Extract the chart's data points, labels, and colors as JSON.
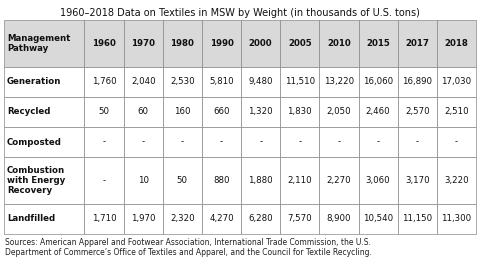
{
  "title": "1960–2018 Data on Textiles in MSW by Weight (in thousands of U.S. tons)",
  "columns": [
    "Management\nPathway",
    "1960",
    "1970",
    "1980",
    "1990",
    "2000",
    "2005",
    "2010",
    "2015",
    "2017",
    "2018"
  ],
  "rows": [
    [
      "Generation",
      "1,760",
      "2,040",
      "2,530",
      "5,810",
      "9,480",
      "11,510",
      "13,220",
      "16,060",
      "16,890",
      "17,030"
    ],
    [
      "Recycled",
      "50",
      "60",
      "160",
      "660",
      "1,320",
      "1,830",
      "2,050",
      "2,460",
      "2,570",
      "2,510"
    ],
    [
      "Composted",
      "-",
      "-",
      "-",
      "-",
      "-",
      "-",
      "-",
      "-",
      "-",
      "-"
    ],
    [
      "Combustion\nwith Energy\nRecovery",
      "-",
      "10",
      "50",
      "880",
      "1,880",
      "2,110",
      "2,270",
      "3,060",
      "3,170",
      "3,220"
    ],
    [
      "Landfilled",
      "1,710",
      "1,970",
      "2,320",
      "4,270",
      "6,280",
      "7,570",
      "8,900",
      "10,540",
      "11,150",
      "11,300"
    ]
  ],
  "footer": "Sources: American Apparel and Footwear Association, International Trade Commission, the U.S.\nDepartment of Commerce’s Office of Textiles and Apparel, and the Council for Textile Recycling.",
  "header_bg": "#d9d9d9",
  "border_color": "#888888",
  "title_fontsize": 7.0,
  "header_fontsize": 6.2,
  "cell_fontsize": 6.2,
  "footer_fontsize": 5.5,
  "col_widths_rel": [
    1.85,
    0.9,
    0.9,
    0.9,
    0.9,
    0.9,
    0.9,
    0.9,
    0.9,
    0.9,
    0.9
  ],
  "row_heights_rel": [
    1.55,
    1.0,
    1.0,
    1.0,
    1.55,
    1.0
  ]
}
